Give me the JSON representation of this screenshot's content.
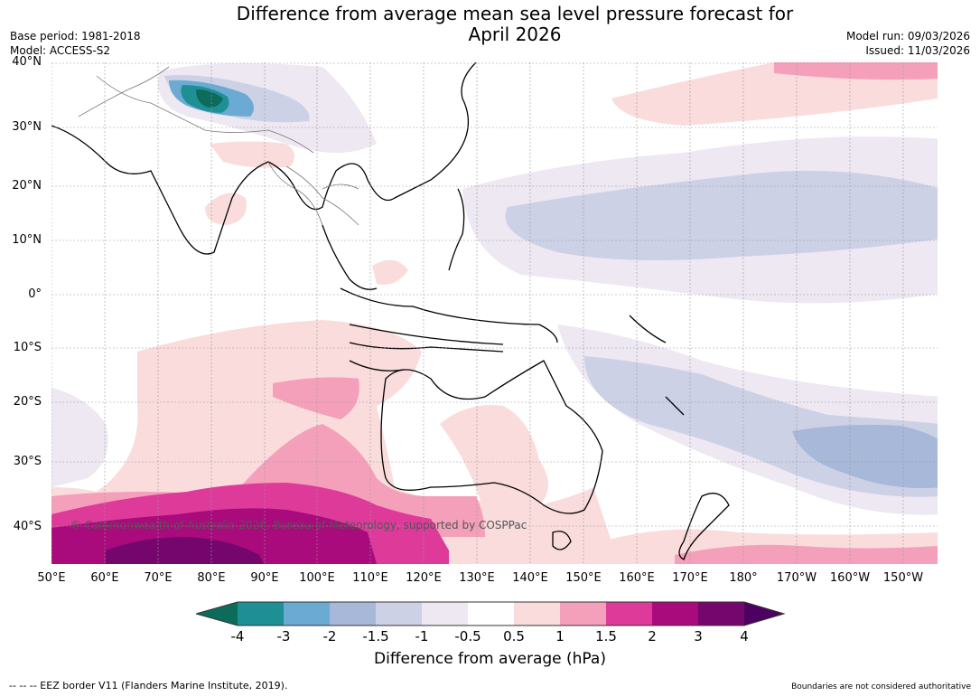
{
  "header": {
    "title": "Difference from average mean sea level pressure forecast for\nApril 2026",
    "base_period": "Base period: 1981-2018",
    "model": "Model: ACCESS-S2",
    "model_run": "Model run: 09/03/2026",
    "issued": "Issued: 11/03/2026"
  },
  "map": {
    "lat_labels": [
      "40°N",
      "30°N",
      "20°N",
      "10°N",
      "0°",
      "10°S",
      "20°S",
      "30°S",
      "40°S"
    ],
    "lon_labels": [
      "50°E",
      "60°E",
      "70°E",
      "80°E",
      "90°E",
      "100°E",
      "110°E",
      "120°E",
      "130°E",
      "140°E",
      "150°E",
      "160°E",
      "170°E",
      "180°",
      "170°W",
      "160°W",
      "150°W"
    ],
    "copyright": "© Commonwealth of Australia 2026, Bureau of Meteorology, supported by COSPPac"
  },
  "colorbar": {
    "ticks": [
      "-4",
      "-3",
      "-2",
      "-1.5",
      "-1",
      "-0.5",
      "0.5",
      "1",
      "1.5",
      "2",
      "3",
      "4"
    ],
    "label": "Difference from average (hPa)",
    "colors": {
      "below_min": "#0d6b5c",
      "c1": "#1f8f96",
      "c2": "#6aaad3",
      "c3": "#a7b8d8",
      "c4": "#cdd1e6",
      "c5": "#ede8f2",
      "c6": "#ffffff",
      "c7": "#fadcdc",
      "c8": "#f5a0ba",
      "c9": "#dd3a9a",
      "c10": "#a90a7c",
      "c11": "#74066e",
      "above_max": "#4d0060"
    }
  },
  "footer": {
    "eez_note": "--  --  -- EEZ border V11 (Flanders Marine Institute, 2019).",
    "boundaries_note": "Boundaries are not considered authoritative"
  }
}
